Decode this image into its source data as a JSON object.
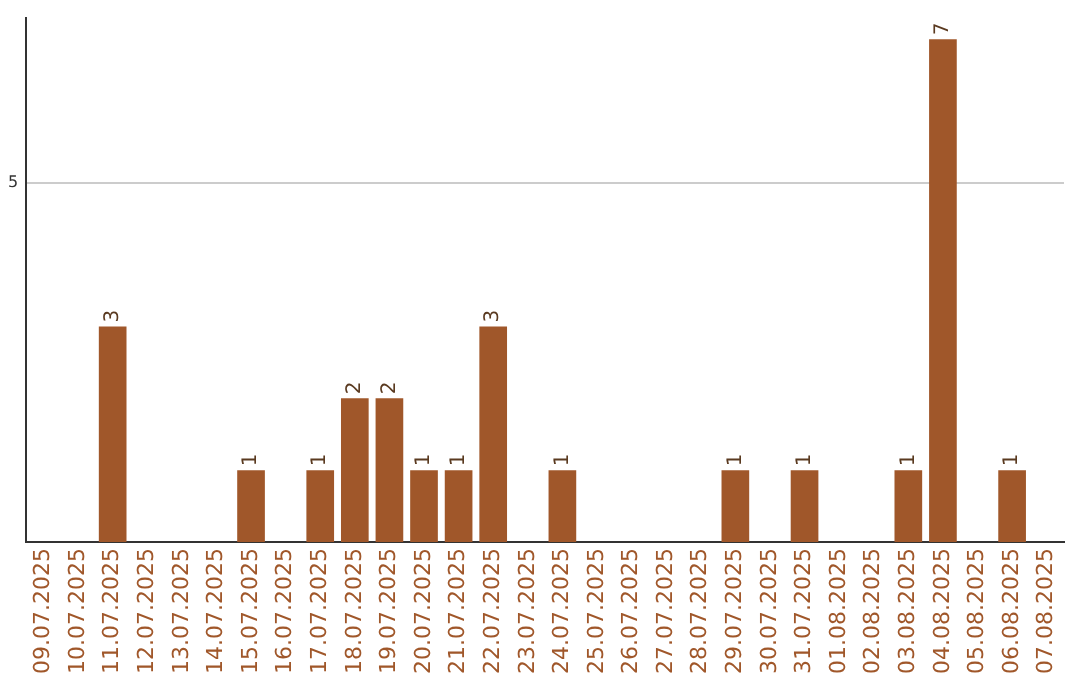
{
  "chart_data": {
    "type": "bar",
    "categories": [
      "09.07.2025",
      "10.07.2025",
      "11.07.2025",
      "12.07.2025",
      "13.07.2025",
      "14.07.2025",
      "15.07.2025",
      "16.07.2025",
      "17.07.2025",
      "18.07.2025",
      "19.07.2025",
      "20.07.2025",
      "21.07.2025",
      "22.07.2025",
      "23.07.2025",
      "24.07.2025",
      "25.07.2025",
      "26.07.2025",
      "27.07.2025",
      "28.07.2025",
      "29.07.2025",
      "30.07.2025",
      "31.07.2025",
      "01.08.2025",
      "02.08.2025",
      "03.08.2025",
      "04.08.2025",
      "05.08.2025",
      "06.08.2025",
      "07.08.2025"
    ],
    "values": [
      0,
      0,
      3,
      0,
      0,
      0,
      1,
      0,
      1,
      2,
      2,
      1,
      1,
      3,
      0,
      1,
      0,
      0,
      0,
      0,
      1,
      0,
      1,
      0,
      0,
      1,
      7,
      0,
      1,
      0
    ],
    "value_labels": [
      null,
      null,
      "3",
      null,
      null,
      null,
      "1",
      null,
      "1",
      "2",
      "2",
      "1",
      "1",
      "3",
      null,
      "1",
      null,
      null,
      null,
      null,
      "1",
      null,
      "1",
      null,
      null,
      "1",
      "7",
      null,
      "1",
      null
    ],
    "color": "#a0572a",
    "ylim": [
      0,
      7.3
    ],
    "yticks": [
      5
    ],
    "grid": "y",
    "legend": false
  }
}
